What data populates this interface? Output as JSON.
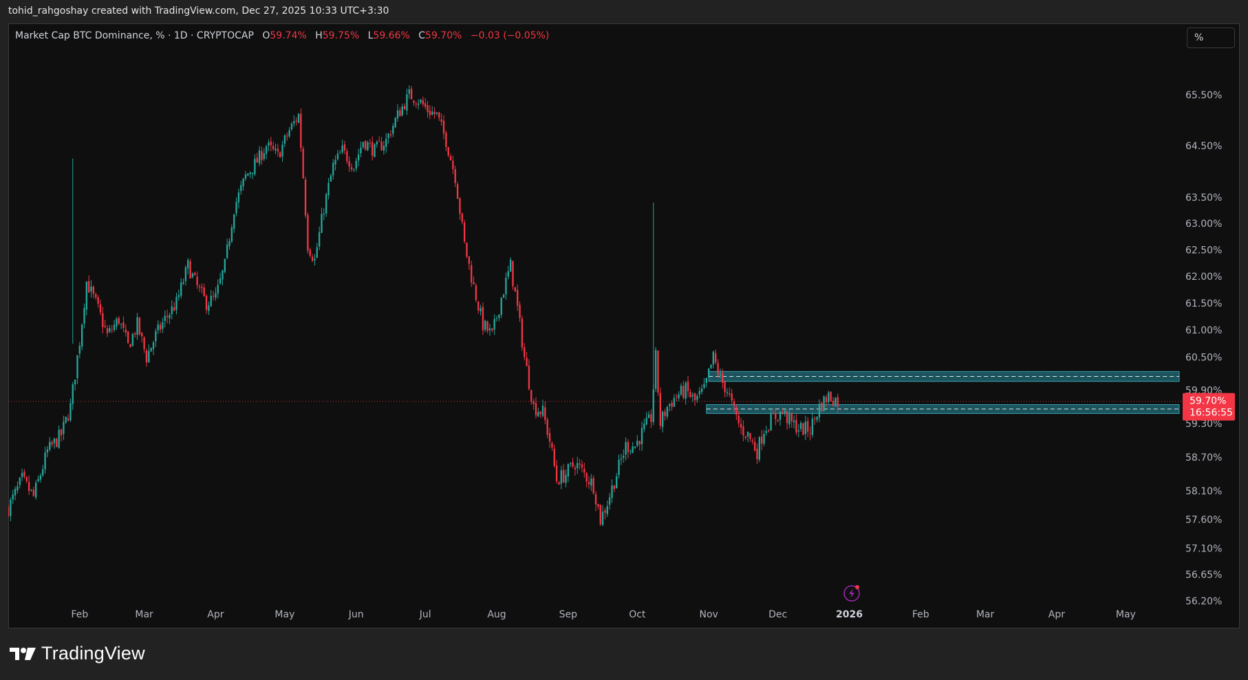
{
  "header": {
    "attribution": "tohid_rahgoshay created with TradingView.com, Dec 27, 2025 10:33 UTC+3:30"
  },
  "legend": {
    "symbol": "Market Cap BTC Dominance, % · 1D · CRYPTOCAP",
    "open_label": "O",
    "open": "59.74%",
    "high_label": "H",
    "high": "59.75%",
    "low_label": "L",
    "low": "59.66%",
    "close_label": "C",
    "close": "59.70%",
    "change": "−0.03 (−0.05%)"
  },
  "scale_button": "%",
  "price_tag": {
    "value": "59.70%",
    "countdown": "16:56:55"
  },
  "footer": {
    "brand": "TradingView"
  },
  "colors": {
    "up": "#26a69a",
    "down": "#f23645",
    "background": "#0f0f0f",
    "zone": "#1e5f6b"
  },
  "chart_data": {
    "type": "candlestick",
    "unit": "%",
    "y_ticks": [
      "65.50%",
      "64.50%",
      "63.50%",
      "63.00%",
      "62.50%",
      "62.00%",
      "61.50%",
      "61.00%",
      "60.50%",
      "59.90%",
      "59.30%",
      "58.70%",
      "58.10%",
      "57.60%",
      "57.10%",
      "56.65%",
      "56.20%"
    ],
    "y_range": [
      56.2,
      65.5
    ],
    "x_ticks": [
      "Feb",
      "Mar",
      "Apr",
      "May",
      "Jun",
      "Jul",
      "Aug",
      "Sep",
      "Oct",
      "Nov",
      "Dec",
      "2026",
      "Feb",
      "Mar",
      "Apr",
      "May"
    ],
    "x_range": [
      "2025-01-01",
      "2026-05-20"
    ],
    "bold_tick": "2026",
    "last_price": 59.7,
    "zones": [
      {
        "from": "2025-11-01",
        "to": "open",
        "low": 60.06,
        "high": 60.24
      },
      {
        "from": "2025-10-31",
        "to": "open",
        "low": 59.48,
        "high": 59.64
      }
    ],
    "ohlc_path": [
      [
        "2025-01-01",
        57.8
      ],
      [
        "2025-01-07",
        58.3
      ],
      [
        "2025-01-12",
        58.0
      ],
      [
        "2025-01-18",
        58.8
      ],
      [
        "2025-01-24",
        59.1
      ],
      [
        "2025-01-28",
        59.6
      ],
      [
        "2025-02-01",
        60.8
      ],
      [
        "2025-02-04",
        61.9
      ],
      [
        "2025-02-08",
        61.5
      ],
      [
        "2025-02-13",
        60.9
      ],
      [
        "2025-02-18",
        61.2
      ],
      [
        "2025-02-22",
        60.7
      ],
      [
        "2025-02-26",
        61.1
      ],
      [
        "2025-03-02",
        60.5
      ],
      [
        "2025-03-06",
        60.9
      ],
      [
        "2025-03-10",
        61.2
      ],
      [
        "2025-03-15",
        61.5
      ],
      [
        "2025-03-20",
        62.2
      ],
      [
        "2025-03-24",
        61.8
      ],
      [
        "2025-03-28",
        61.5
      ],
      [
        "2025-04-01",
        61.6
      ],
      [
        "2025-04-05",
        62.2
      ],
      [
        "2025-04-09",
        63.3
      ],
      [
        "2025-04-14",
        63.9
      ],
      [
        "2025-04-19",
        64.2
      ],
      [
        "2025-04-23",
        64.5
      ],
      [
        "2025-04-28",
        64.3
      ],
      [
        "2025-05-03",
        64.8
      ],
      [
        "2025-05-07",
        65.1
      ],
      [
        "2025-05-09",
        63.9
      ],
      [
        "2025-05-11",
        62.6
      ],
      [
        "2025-05-14",
        62.3
      ],
      [
        "2025-05-18",
        63.3
      ],
      [
        "2025-05-22",
        64.1
      ],
      [
        "2025-05-26",
        64.4
      ],
      [
        "2025-05-31",
        64.1
      ],
      [
        "2025-06-04",
        64.6
      ],
      [
        "2025-06-09",
        64.4
      ],
      [
        "2025-06-14",
        64.6
      ],
      [
        "2025-06-19",
        65.1
      ],
      [
        "2025-06-24",
        65.5
      ],
      [
        "2025-06-28",
        65.4
      ],
      [
        "2025-07-02",
        65.2
      ],
      [
        "2025-07-06",
        65.1
      ],
      [
        "2025-07-10",
        64.6
      ],
      [
        "2025-07-14",
        63.9
      ],
      [
        "2025-07-18",
        62.6
      ],
      [
        "2025-07-22",
        61.8
      ],
      [
        "2025-07-26",
        61.1
      ],
      [
        "2025-07-30",
        60.9
      ],
      [
        "2025-08-03",
        61.6
      ],
      [
        "2025-08-07",
        62.2
      ],
      [
        "2025-08-10",
        61.4
      ],
      [
        "2025-08-13",
        60.5
      ],
      [
        "2025-08-17",
        59.6
      ],
      [
        "2025-08-21",
        59.5
      ],
      [
        "2025-08-24",
        59.0
      ],
      [
        "2025-08-27",
        58.3
      ],
      [
        "2025-08-31",
        58.4
      ],
      [
        "2025-09-04",
        58.6
      ],
      [
        "2025-09-08",
        58.4
      ],
      [
        "2025-09-12",
        58.2
      ],
      [
        "2025-09-15",
        57.6
      ],
      [
        "2025-09-18",
        57.9
      ],
      [
        "2025-09-22",
        58.4
      ],
      [
        "2025-09-26",
        58.9
      ],
      [
        "2025-09-30",
        58.9
      ],
      [
        "2025-10-04",
        59.2
      ],
      [
        "2025-10-07",
        59.4
      ],
      [
        "2025-10-09",
        60.5
      ],
      [
        "2025-10-11",
        59.3
      ],
      [
        "2025-10-14",
        59.6
      ],
      [
        "2025-10-18",
        59.8
      ],
      [
        "2025-10-22",
        59.9
      ],
      [
        "2025-10-26",
        59.7
      ],
      [
        "2025-10-30",
        59.9
      ],
      [
        "2025-11-03",
        60.5
      ],
      [
        "2025-11-06",
        60.1
      ],
      [
        "2025-11-09",
        59.9
      ],
      [
        "2025-11-12",
        59.5
      ],
      [
        "2025-11-15",
        59.2
      ],
      [
        "2025-11-18",
        59.1
      ],
      [
        "2025-11-22",
        58.8
      ],
      [
        "2025-11-25",
        59.2
      ],
      [
        "2025-11-29",
        59.4
      ],
      [
        "2025-12-03",
        59.5
      ],
      [
        "2025-12-07",
        59.3
      ],
      [
        "2025-12-11",
        59.2
      ],
      [
        "2025-12-15",
        59.2
      ],
      [
        "2025-12-19",
        59.6
      ],
      [
        "2025-12-23",
        59.8
      ],
      [
        "2025-12-27",
        59.7
      ]
    ],
    "spikes": [
      [
        "2025-01-29",
        60.75,
        64.25
      ],
      [
        "2025-10-08",
        59.8,
        63.4
      ]
    ]
  }
}
